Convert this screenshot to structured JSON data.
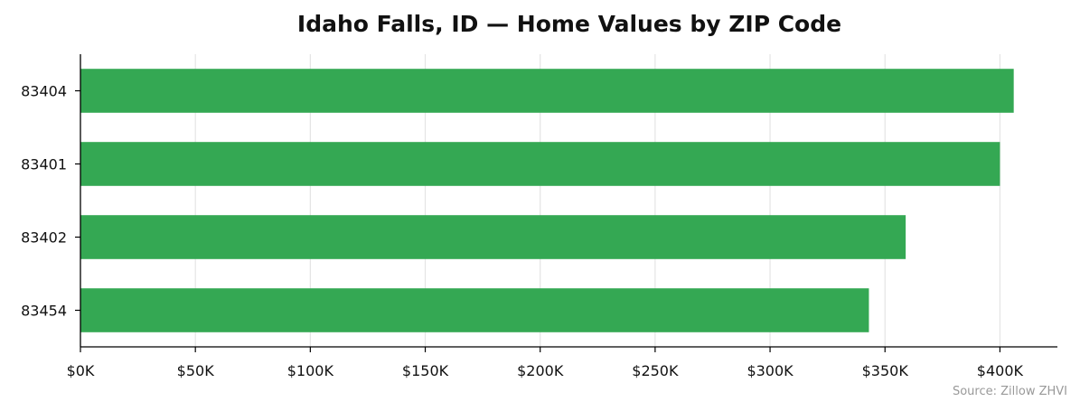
{
  "chart_data": {
    "type": "bar",
    "orientation": "horizontal",
    "title": "Idaho Falls, ID — Home Values by ZIP Code",
    "xlabel": "",
    "ylabel": "",
    "categories": [
      "83404",
      "83401",
      "83402",
      "83454"
    ],
    "values": [
      406000,
      400000,
      359000,
      343000
    ],
    "xlim": [
      0,
      425000
    ],
    "xticks": [
      0,
      50000,
      100000,
      150000,
      200000,
      250000,
      300000,
      350000,
      400000
    ],
    "xtick_labels": [
      "$0K",
      "$50K",
      "$100K",
      "$150K",
      "$200K",
      "$250K",
      "$300K",
      "$350K",
      "$400K"
    ],
    "grid": "vertical",
    "legend": "none",
    "bar_color": "#34a853",
    "source": "Source: Zillow ZHVI"
  }
}
